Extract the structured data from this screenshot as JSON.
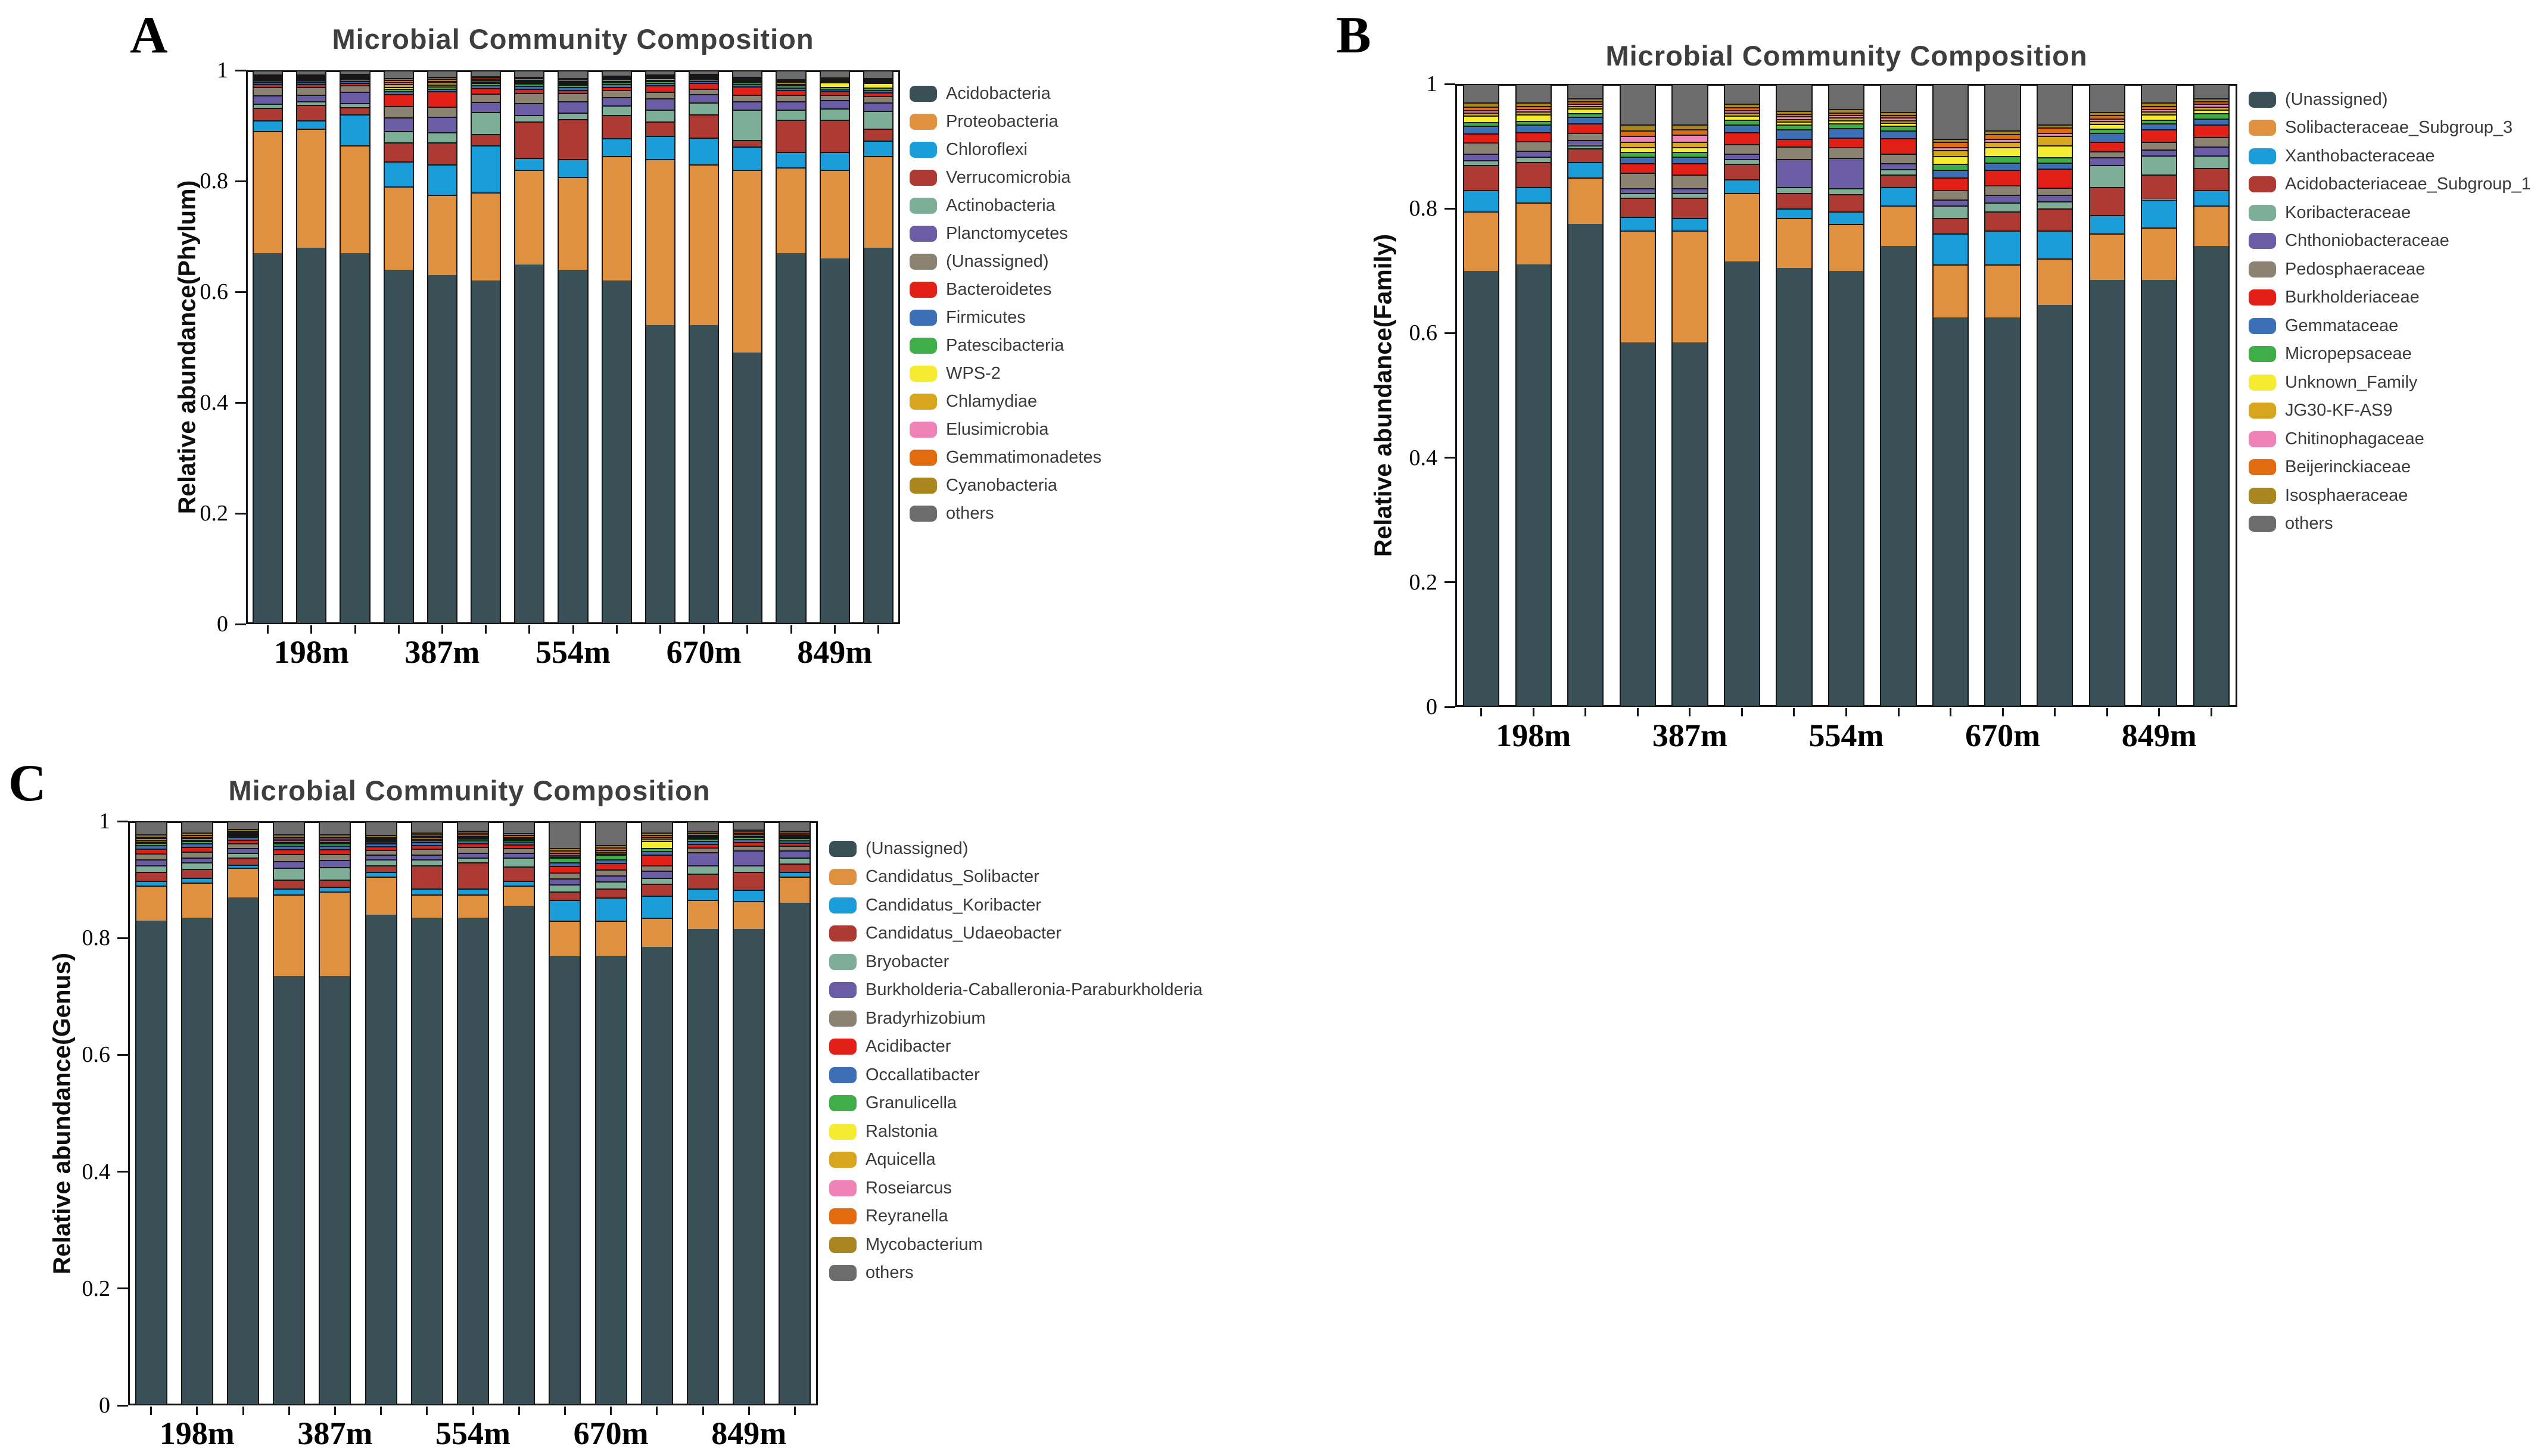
{
  "figure": {
    "background": "#ffffff",
    "description": "Three stacked bar charts of microbial community composition at Phylum, Family and Genus level for five depths (three replicates each)"
  },
  "chart_data": [
    {
      "id": "A",
      "panel_letter": "A",
      "type": "bar",
      "stacked": true,
      "title": "Microbial Community Composition",
      "ylabel": "Relative abundance(Phylum)",
      "ylim": [
        0,
        1
      ],
      "ytick_labels": [
        "0",
        "0.2",
        "0.4",
        "0.6",
        "0.8",
        "1"
      ],
      "grid": false,
      "legend_position": "right",
      "group_labels": [
        "198m",
        "387m",
        "554m",
        "670m",
        "849m"
      ],
      "bars_per_group": 3,
      "series": [
        {
          "name": "Acidobacteria",
          "color": "#3A5057"
        },
        {
          "name": "Proteobacteria",
          "color": "#E0913F"
        },
        {
          "name": "Chloroflexi",
          "color": "#1B9DD9"
        },
        {
          "name": "Verrucomicrobia",
          "color": "#AE3B33"
        },
        {
          "name": "Actinobacteria",
          "color": "#7FAE98"
        },
        {
          "name": "Planctomycetes",
          "color": "#6A5CA5"
        },
        {
          "name": "(Unassigned)",
          "color": "#8B8272"
        },
        {
          "name": "Bacteroidetes",
          "color": "#E32017"
        },
        {
          "name": "Firmicutes",
          "color": "#3C6FB6"
        },
        {
          "name": "Patescibacteria",
          "color": "#3FAE49"
        },
        {
          "name": "WPS-2",
          "color": "#F5EB31"
        },
        {
          "name": "Chlamydiae",
          "color": "#D8A51E"
        },
        {
          "name": "Elusimicrobia",
          "color": "#EF82B6"
        },
        {
          "name": "Gemmatimonadetes",
          "color": "#E26A0F"
        },
        {
          "name": "Cyanobacteria",
          "color": "#A9861F"
        },
        {
          "name": "others",
          "color": "#6C6C6C"
        }
      ],
      "bars": [
        [
          0.67,
          0.22,
          0.02,
          0.022,
          0.008,
          0.015,
          0.015,
          0.005,
          0.004,
          0.003,
          0.002,
          0.002,
          0.002,
          0.002,
          0.002,
          0.008
        ],
        [
          0.68,
          0.215,
          0.015,
          0.028,
          0.006,
          0.012,
          0.014,
          0.005,
          0.004,
          0.003,
          0.002,
          0.002,
          0.002,
          0.002,
          0.002,
          0.008
        ],
        [
          0.67,
          0.195,
          0.055,
          0.013,
          0.008,
          0.02,
          0.012,
          0.004,
          0.004,
          0.003,
          0.002,
          0.002,
          0.002,
          0.002,
          0.002,
          0.006
        ],
        [
          0.64,
          0.15,
          0.045,
          0.035,
          0.02,
          0.025,
          0.02,
          0.022,
          0.005,
          0.005,
          0.003,
          0.005,
          0.003,
          0.005,
          0.003,
          0.014
        ],
        [
          0.63,
          0.145,
          0.055,
          0.04,
          0.018,
          0.028,
          0.018,
          0.028,
          0.005,
          0.004,
          0.003,
          0.004,
          0.003,
          0.004,
          0.003,
          0.012
        ],
        [
          0.62,
          0.16,
          0.085,
          0.02,
          0.04,
          0.018,
          0.015,
          0.01,
          0.005,
          0.004,
          0.002,
          0.003,
          0.002,
          0.003,
          0.002,
          0.011
        ],
        [
          0.65,
          0.17,
          0.022,
          0.065,
          0.012,
          0.022,
          0.018,
          0.008,
          0.005,
          0.004,
          0.002,
          0.003,
          0.002,
          0.003,
          0.002,
          0.012
        ],
        [
          0.64,
          0.168,
          0.032,
          0.072,
          0.012,
          0.02,
          0.015,
          0.006,
          0.005,
          0.004,
          0.002,
          0.003,
          0.002,
          0.003,
          0.002,
          0.014
        ],
        [
          0.62,
          0.225,
          0.032,
          0.042,
          0.018,
          0.015,
          0.012,
          0.006,
          0.005,
          0.004,
          0.002,
          0.003,
          0.002,
          0.002,
          0.002,
          0.01
        ],
        [
          0.54,
          0.3,
          0.042,
          0.025,
          0.022,
          0.02,
          0.012,
          0.012,
          0.004,
          0.004,
          0.002,
          0.003,
          0.002,
          0.002,
          0.002,
          0.008
        ],
        [
          0.54,
          0.29,
          0.048,
          0.042,
          0.022,
          0.015,
          0.01,
          0.01,
          0.004,
          0.003,
          0.002,
          0.002,
          0.002,
          0.002,
          0.002,
          0.006
        ],
        [
          0.49,
          0.33,
          0.042,
          0.012,
          0.055,
          0.015,
          0.012,
          0.015,
          0.004,
          0.003,
          0.002,
          0.002,
          0.002,
          0.002,
          0.002,
          0.012
        ],
        [
          0.67,
          0.155,
          0.028,
          0.058,
          0.018,
          0.015,
          0.012,
          0.008,
          0.005,
          0.004,
          0.002,
          0.003,
          0.002,
          0.002,
          0.002,
          0.016
        ],
        [
          0.66,
          0.16,
          0.033,
          0.058,
          0.02,
          0.015,
          0.01,
          0.006,
          0.004,
          0.004,
          0.008,
          0.003,
          0.002,
          0.002,
          0.002,
          0.013
        ],
        [
          0.68,
          0.165,
          0.028,
          0.022,
          0.032,
          0.015,
          0.012,
          0.006,
          0.005,
          0.004,
          0.008,
          0.003,
          0.002,
          0.002,
          0.002,
          0.014
        ]
      ]
    },
    {
      "id": "B",
      "panel_letter": "B",
      "type": "bar",
      "stacked": true,
      "title": "Microbial Community Composition",
      "ylabel": "Relative abundance(Family)",
      "ylim": [
        0,
        1
      ],
      "ytick_labels": [
        "0",
        "0.2",
        "0.4",
        "0.6",
        "0.8",
        "1"
      ],
      "grid": false,
      "legend_position": "right",
      "group_labels": [
        "198m",
        "387m",
        "554m",
        "670m",
        "849m"
      ],
      "bars_per_group": 3,
      "series": [
        {
          "name": "(Unassigned)",
          "color": "#3A5057"
        },
        {
          "name": "Solibacteraceae_Subgroup_3",
          "color": "#E0913F"
        },
        {
          "name": "Xanthobacteraceae",
          "color": "#1B9DD9"
        },
        {
          "name": "Acidobacteriaceae_Subgroup_1",
          "color": "#AE3B33"
        },
        {
          "name": "Koribacteraceae",
          "color": "#7FAE98"
        },
        {
          "name": "Chthoniobacteraceae",
          "color": "#6A5CA5"
        },
        {
          "name": "Pedosphaeraceae",
          "color": "#8B8272"
        },
        {
          "name": "Burkholderiaceae",
          "color": "#E32017"
        },
        {
          "name": "Gemmataceae",
          "color": "#3C6FB6"
        },
        {
          "name": "Micropepsaceae",
          "color": "#3FAE49"
        },
        {
          "name": "Unknown_Family",
          "color": "#F5EB31"
        },
        {
          "name": "JG30-KF-AS9",
          "color": "#D8A51E"
        },
        {
          "name": "Chitinophagaceae",
          "color": "#EF82B6"
        },
        {
          "name": "Beijerinckiaceae",
          "color": "#E26A0F"
        },
        {
          "name": "Isosphaeraceae",
          "color": "#A9861F"
        },
        {
          "name": "others",
          "color": "#6C6C6C"
        }
      ],
      "bars": [
        [
          0.7,
          0.095,
          0.035,
          0.04,
          0.008,
          0.01,
          0.018,
          0.015,
          0.012,
          0.006,
          0.01,
          0.005,
          0.004,
          0.006,
          0.006,
          0.03
        ],
        [
          0.71,
          0.1,
          0.025,
          0.04,
          0.008,
          0.01,
          0.015,
          0.015,
          0.012,
          0.006,
          0.01,
          0.005,
          0.004,
          0.005,
          0.005,
          0.03
        ],
        [
          0.775,
          0.075,
          0.025,
          0.022,
          0.005,
          0.008,
          0.012,
          0.015,
          0.01,
          0.006,
          0.008,
          0.004,
          0.003,
          0.004,
          0.005,
          0.023
        ],
        [
          0.585,
          0.18,
          0.022,
          0.03,
          0.008,
          0.008,
          0.025,
          0.015,
          0.01,
          0.008,
          0.008,
          0.008,
          0.01,
          0.008,
          0.01,
          0.065
        ],
        [
          0.585,
          0.18,
          0.02,
          0.032,
          0.008,
          0.008,
          0.022,
          0.018,
          0.01,
          0.008,
          0.008,
          0.008,
          0.012,
          0.008,
          0.008,
          0.065
        ],
        [
          0.715,
          0.11,
          0.022,
          0.025,
          0.008,
          0.008,
          0.015,
          0.02,
          0.012,
          0.008,
          0.006,
          0.005,
          0.004,
          0.005,
          0.005,
          0.032
        ],
        [
          0.705,
          0.08,
          0.015,
          0.025,
          0.01,
          0.045,
          0.02,
          0.012,
          0.015,
          0.008,
          0.005,
          0.004,
          0.004,
          0.004,
          0.005,
          0.043
        ],
        [
          0.7,
          0.075,
          0.02,
          0.028,
          0.01,
          0.048,
          0.018,
          0.015,
          0.015,
          0.008,
          0.005,
          0.004,
          0.004,
          0.004,
          0.006,
          0.04
        ],
        [
          0.74,
          0.065,
          0.03,
          0.02,
          0.008,
          0.01,
          0.015,
          0.025,
          0.012,
          0.008,
          0.005,
          0.004,
          0.004,
          0.004,
          0.005,
          0.045
        ],
        [
          0.625,
          0.085,
          0.05,
          0.025,
          0.02,
          0.01,
          0.015,
          0.02,
          0.012,
          0.01,
          0.012,
          0.01,
          0.005,
          0.008,
          0.005,
          0.088
        ],
        [
          0.625,
          0.085,
          0.055,
          0.03,
          0.015,
          0.012,
          0.015,
          0.025,
          0.012,
          0.01,
          0.015,
          0.008,
          0.005,
          0.008,
          0.005,
          0.075
        ],
        [
          0.645,
          0.075,
          0.045,
          0.035,
          0.012,
          0.01,
          0.012,
          0.03,
          0.01,
          0.008,
          0.02,
          0.015,
          0.005,
          0.008,
          0.005,
          0.065
        ],
        [
          0.685,
          0.075,
          0.03,
          0.045,
          0.035,
          0.012,
          0.01,
          0.015,
          0.015,
          0.006,
          0.008,
          0.005,
          0.004,
          0.005,
          0.005,
          0.045
        ],
        [
          0.685,
          0.085,
          0.045,
          0.04,
          0.03,
          0.01,
          0.012,
          0.02,
          0.01,
          0.006,
          0.008,
          0.005,
          0.004,
          0.005,
          0.005,
          0.03
        ],
        [
          0.74,
          0.065,
          0.025,
          0.035,
          0.02,
          0.015,
          0.015,
          0.02,
          0.01,
          0.008,
          0.006,
          0.005,
          0.004,
          0.004,
          0.005,
          0.023
        ]
      ]
    },
    {
      "id": "C",
      "panel_letter": "C",
      "type": "bar",
      "stacked": true,
      "title": "Microbial Community Composition",
      "ylabel": "Relative abundance(Genus)",
      "ylim": [
        0,
        1
      ],
      "ytick_labels": [
        "0",
        "0.2",
        "0.4",
        "0.6",
        "0.8",
        "1"
      ],
      "grid": false,
      "legend_position": "right",
      "group_labels": [
        "198m",
        "387m",
        "554m",
        "670m",
        "849m"
      ],
      "bars_per_group": 3,
      "series": [
        {
          "name": "(Unassigned)",
          "color": "#3A5057"
        },
        {
          "name": "Candidatus_Solibacter",
          "color": "#E0913F"
        },
        {
          "name": "Candidatus_Koribacter",
          "color": "#1B9DD9"
        },
        {
          "name": "Candidatus_Udaeobacter",
          "color": "#AE3B33"
        },
        {
          "name": "Bryobacter",
          "color": "#7FAE98"
        },
        {
          "name": "Burkholderia-Caballeronia-Paraburkholderia",
          "color": "#6A5CA5"
        },
        {
          "name": "Bradyrhizobium",
          "color": "#8B8272"
        },
        {
          "name": "Acidibacter",
          "color": "#E32017"
        },
        {
          "name": "Occallatibacter",
          "color": "#3C6FB6"
        },
        {
          "name": "Granulicella",
          "color": "#3FAE49"
        },
        {
          "name": "Ralstonia",
          "color": "#F5EB31"
        },
        {
          "name": "Aquicella",
          "color": "#D8A51E"
        },
        {
          "name": "Roseiarcus",
          "color": "#EF82B6"
        },
        {
          "name": "Reyranella",
          "color": "#E26A0F"
        },
        {
          "name": "Mycobacterium",
          "color": "#A9861F"
        },
        {
          "name": "others",
          "color": "#6C6C6C"
        }
      ],
      "bars": [
        [
          0.83,
          0.06,
          0.008,
          0.015,
          0.012,
          0.01,
          0.01,
          0.008,
          0.006,
          0.004,
          0.002,
          0.003,
          0.003,
          0.003,
          0.004,
          0.022
        ],
        [
          0.835,
          0.06,
          0.008,
          0.015,
          0.012,
          0.008,
          0.01,
          0.008,
          0.006,
          0.004,
          0.002,
          0.003,
          0.003,
          0.003,
          0.004,
          0.019
        ],
        [
          0.87,
          0.05,
          0.006,
          0.012,
          0.008,
          0.008,
          0.008,
          0.006,
          0.005,
          0.003,
          0.002,
          0.002,
          0.002,
          0.002,
          0.003,
          0.013
        ],
        [
          0.735,
          0.14,
          0.01,
          0.015,
          0.02,
          0.012,
          0.012,
          0.008,
          0.006,
          0.004,
          0.002,
          0.003,
          0.003,
          0.004,
          0.004,
          0.022
        ],
        [
          0.735,
          0.145,
          0.008,
          0.012,
          0.022,
          0.012,
          0.01,
          0.008,
          0.006,
          0.004,
          0.002,
          0.003,
          0.003,
          0.004,
          0.004,
          0.022
        ],
        [
          0.84,
          0.065,
          0.008,
          0.012,
          0.01,
          0.008,
          0.008,
          0.006,
          0.005,
          0.003,
          0.002,
          0.002,
          0.002,
          0.003,
          0.003,
          0.023
        ],
        [
          0.835,
          0.04,
          0.01,
          0.04,
          0.01,
          0.008,
          0.01,
          0.006,
          0.005,
          0.003,
          0.002,
          0.003,
          0.003,
          0.003,
          0.003,
          0.019
        ],
        [
          0.835,
          0.04,
          0.01,
          0.045,
          0.008,
          0.008,
          0.01,
          0.006,
          0.005,
          0.003,
          0.002,
          0.003,
          0.003,
          0.003,
          0.003,
          0.016
        ],
        [
          0.855,
          0.035,
          0.008,
          0.025,
          0.015,
          0.008,
          0.008,
          0.006,
          0.005,
          0.003,
          0.002,
          0.002,
          0.002,
          0.003,
          0.003,
          0.02
        ],
        [
          0.77,
          0.06,
          0.035,
          0.015,
          0.012,
          0.01,
          0.01,
          0.012,
          0.006,
          0.008,
          0.002,
          0.003,
          0.003,
          0.004,
          0.004,
          0.046
        ],
        [
          0.77,
          0.06,
          0.04,
          0.015,
          0.012,
          0.01,
          0.01,
          0.012,
          0.006,
          0.008,
          0.002,
          0.003,
          0.003,
          0.004,
          0.004,
          0.041
        ],
        [
          0.785,
          0.05,
          0.038,
          0.02,
          0.01,
          0.012,
          0.01,
          0.018,
          0.006,
          0.005,
          0.012,
          0.004,
          0.003,
          0.004,
          0.004,
          0.019
        ],
        [
          0.815,
          0.05,
          0.02,
          0.025,
          0.015,
          0.022,
          0.008,
          0.006,
          0.005,
          0.004,
          0.002,
          0.003,
          0.002,
          0.003,
          0.003,
          0.017
        ],
        [
          0.815,
          0.048,
          0.02,
          0.03,
          0.012,
          0.025,
          0.008,
          0.006,
          0.005,
          0.004,
          0.002,
          0.003,
          0.002,
          0.003,
          0.003,
          0.014
        ],
        [
          0.86,
          0.045,
          0.008,
          0.015,
          0.01,
          0.012,
          0.008,
          0.005,
          0.004,
          0.004,
          0.002,
          0.003,
          0.002,
          0.003,
          0.003,
          0.016
        ]
      ]
    }
  ]
}
